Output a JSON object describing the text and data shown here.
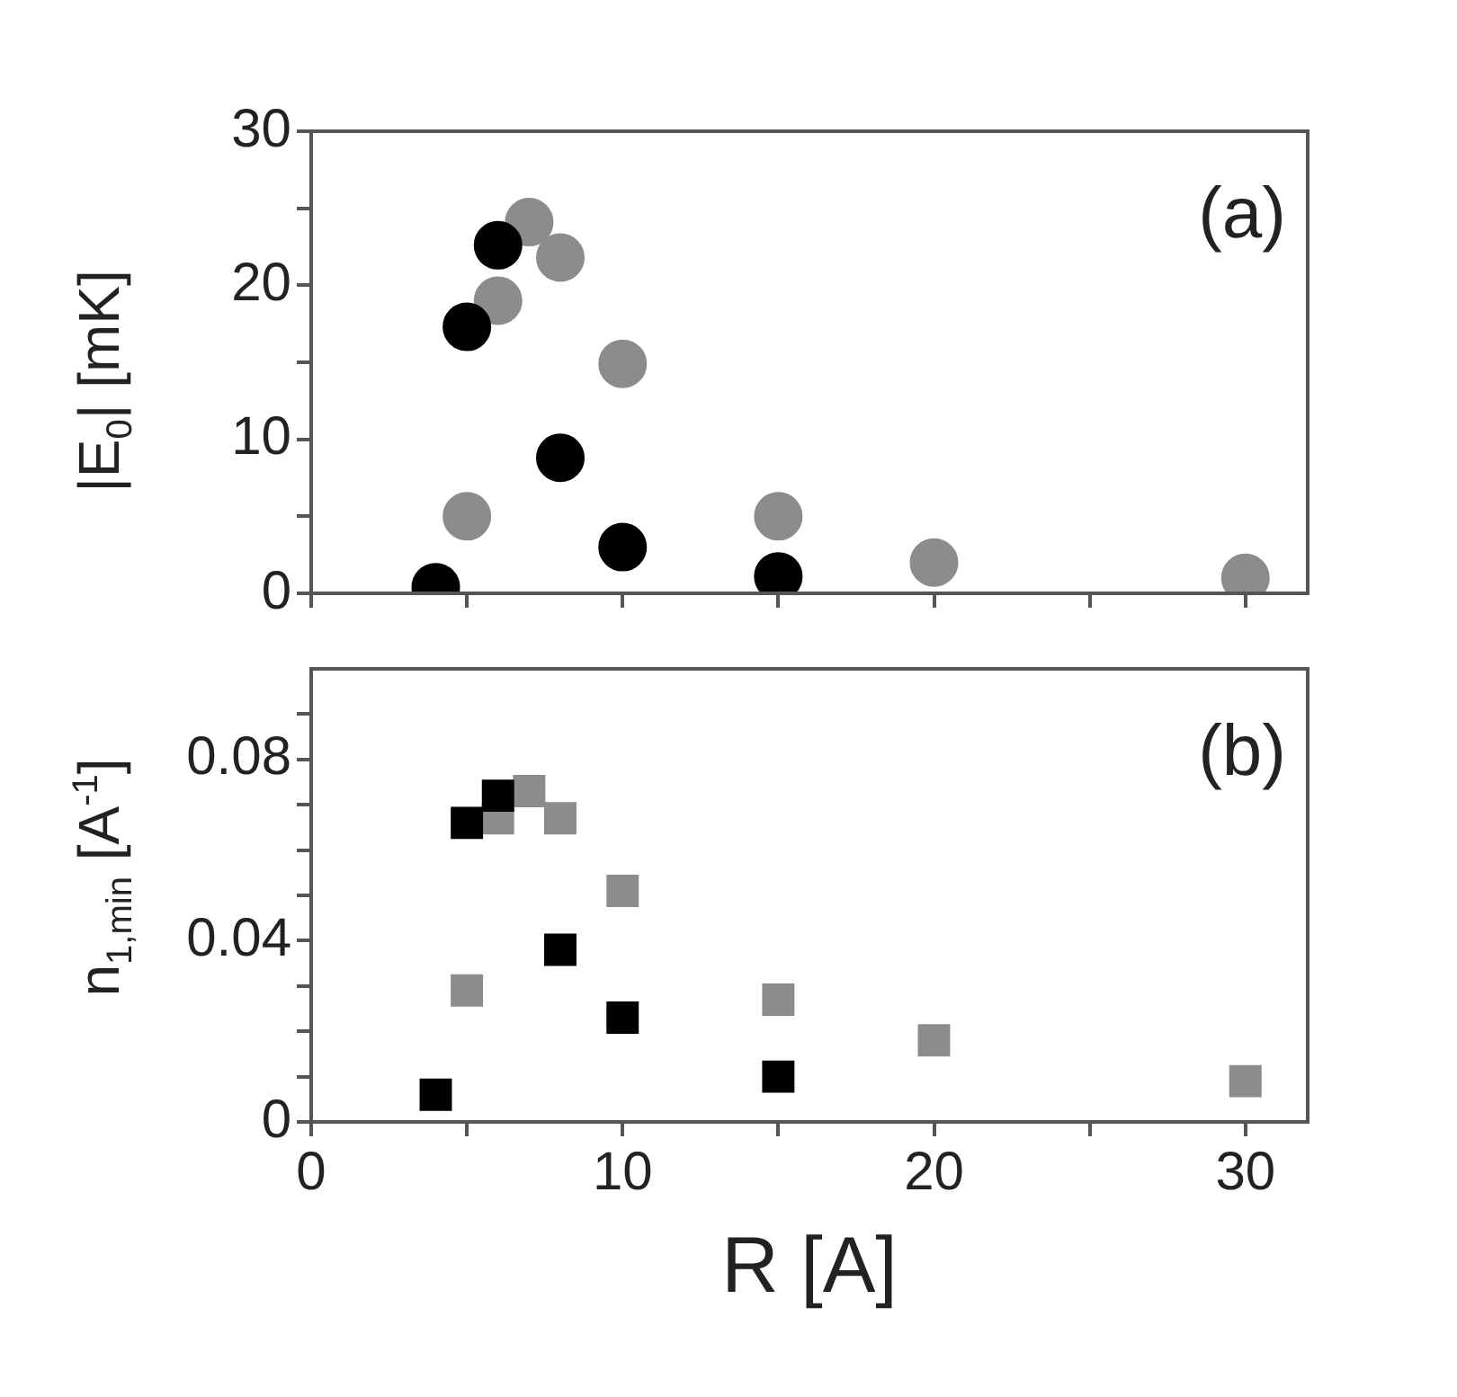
{
  "chart_data": [
    {
      "type": "scatter",
      "ylabel": "|E$_{0}$| [mK]",
      "annotations": [
        "(a)"
      ],
      "marker": "circle",
      "grid": false,
      "tick_labels": "y",
      "xlim": [
        0,
        32
      ],
      "xticks": [
        0,
        {
          "value": 5,
          "label": null
        },
        10,
        {
          "value": 15,
          "label": null
        },
        20,
        {
          "value": 25,
          "label": null
        },
        30
      ],
      "ylim": [
        0,
        30
      ],
      "yticks": [
        0,
        {
          "value": 5,
          "label": null
        },
        10,
        {
          "value": 15,
          "label": null
        },
        20,
        {
          "value": 25,
          "label": null
        },
        30
      ],
      "series": [
        {
          "color": "#000000",
          "x": [
            4,
            5,
            6,
            8,
            10,
            15
          ],
          "values": [
            0.4,
            17.3,
            22.6,
            8.8,
            3.0,
            1.1
          ]
        },
        {
          "color": "#8c8c8c",
          "x": [
            5,
            6,
            7,
            8,
            10,
            15,
            20,
            30
          ],
          "values": [
            5.0,
            19.0,
            24.1,
            21.8,
            14.9,
            5.0,
            2.0,
            1.0
          ]
        }
      ]
    },
    {
      "type": "scatter",
      "xlabel": "R [A]",
      "ylabel": "n$_{1,min}$ [A$^{-1}$]",
      "annotations": [
        "(b)"
      ],
      "marker": "square",
      "grid": false,
      "xlim": [
        0,
        32
      ],
      "xticks": [
        0,
        {
          "value": 5,
          "label": null
        },
        10,
        {
          "value": 15,
          "label": null
        },
        20,
        {
          "value": 25,
          "label": null
        },
        30
      ],
      "ylim": [
        0,
        0.1
      ],
      "yticks": [
        0,
        {
          "value": 0.01,
          "label": null
        },
        {
          "value": 0.02,
          "label": null
        },
        {
          "value": 0.03,
          "label": null
        },
        0.04,
        {
          "value": 0.05,
          "label": null
        },
        {
          "value": 0.06,
          "label": null
        },
        {
          "value": 0.07,
          "label": null
        },
        0.08,
        {
          "value": 0.09,
          "label": null
        }
      ],
      "series": [
        {
          "color": "#000000",
          "x": [
            4,
            5,
            6,
            8,
            10,
            15
          ],
          "values": [
            0.006,
            0.066,
            0.072,
            0.038,
            0.023,
            0.01
          ]
        },
        {
          "color": "#8c8c8c",
          "x": [
            5,
            6,
            7,
            8,
            10,
            15,
            20,
            30
          ],
          "values": [
            0.029,
            0.067,
            0.073,
            0.067,
            0.051,
            0.027,
            0.018,
            0.009
          ]
        }
      ]
    }
  ]
}
